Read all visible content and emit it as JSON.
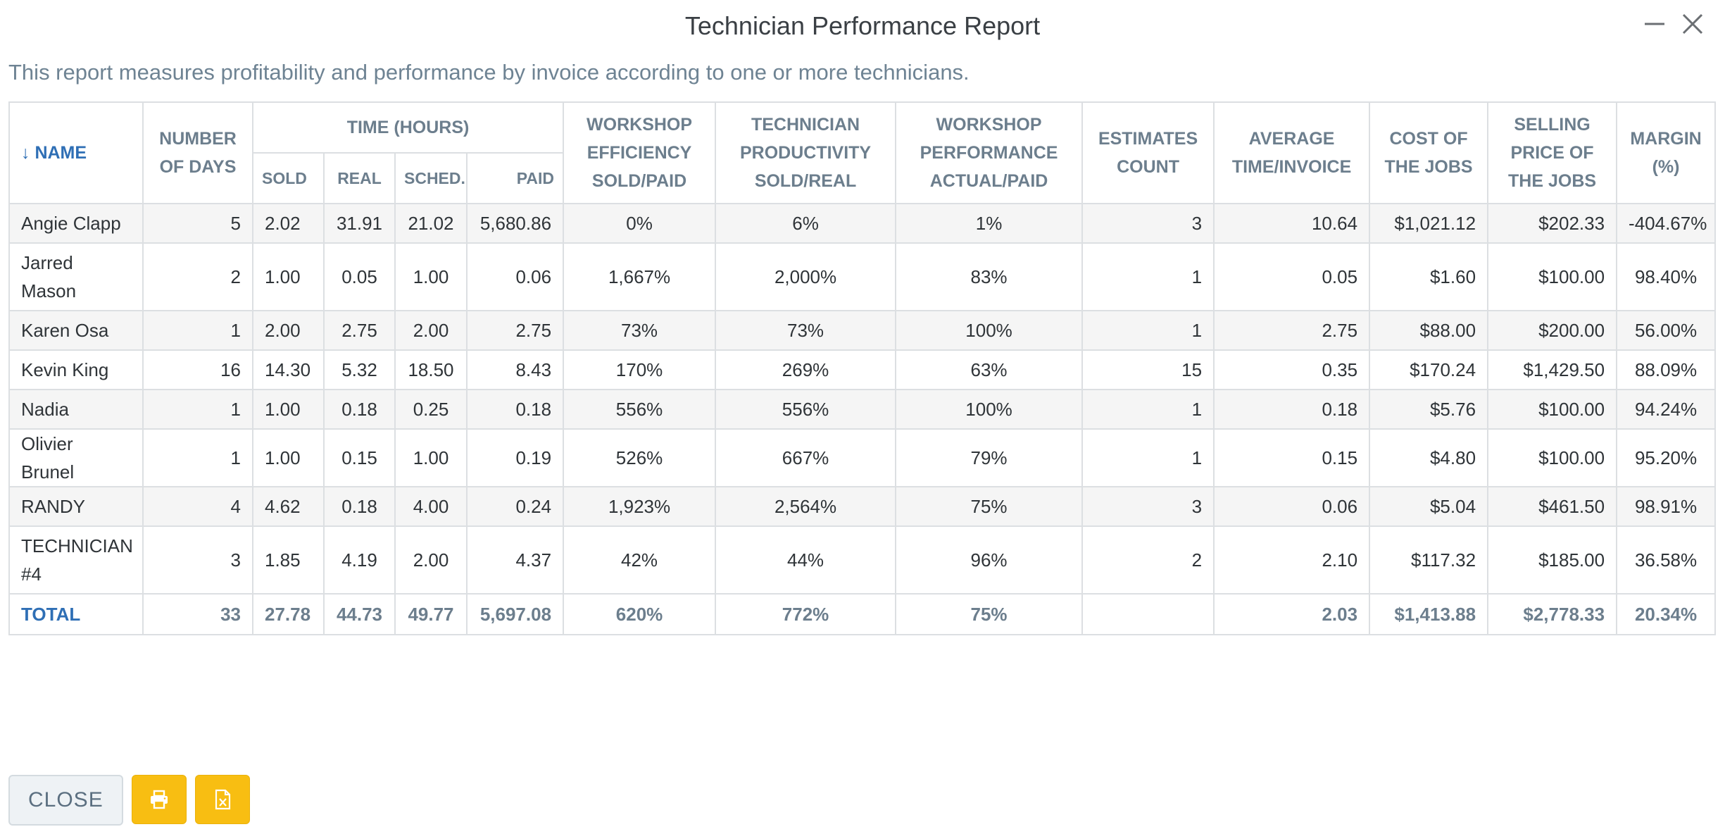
{
  "window": {
    "title": "Technician Performance Report",
    "minimize_icon": "minimize-icon",
    "close_icon": "close-icon"
  },
  "description": "This report measures profitability and performance by invoice according to one or more technicians.",
  "table": {
    "headers": {
      "name": "↓ NAME",
      "days": "NUMBER OF DAYS",
      "time_group": "TIME (HOURS)",
      "sold": "SOLD",
      "real": "REAL",
      "sched": "SCHED.",
      "paid": "PAID",
      "efficiency": "WORKSHOP EFFICIENCY SOLD/PAID",
      "productivity": "TECHNICIAN PRODUCTIVITY SOLD/REAL",
      "performance": "WORKSHOP PERFORMANCE ACTUAL/PAID",
      "estimates": "ESTIMATES COUNT",
      "avg_time": "AVERAGE TIME/INVOICE",
      "cost": "COST OF THE JOBS",
      "selling": "SELLING PRICE OF THE JOBS",
      "margin": "MARGIN (%)"
    },
    "rows": [
      {
        "name": "Angie Clapp",
        "days": "5",
        "sold": "2.02",
        "real": "31.91",
        "sched": "21.02",
        "paid": "5,680.86",
        "efficiency": "0%",
        "productivity": "6%",
        "performance": "1%",
        "estimates": "3",
        "avg_time": "10.64",
        "cost": "$1,021.12",
        "selling": "$202.33",
        "margin": "-404.67%"
      },
      {
        "name": "Jarred Mason",
        "days": "2",
        "sold": "1.00",
        "real": "0.05",
        "sched": "1.00",
        "paid": "0.06",
        "efficiency": "1,667%",
        "productivity": "2,000%",
        "performance": "83%",
        "estimates": "1",
        "avg_time": "0.05",
        "cost": "$1.60",
        "selling": "$100.00",
        "margin": "98.40%"
      },
      {
        "name": "Karen Osa",
        "days": "1",
        "sold": "2.00",
        "real": "2.75",
        "sched": "2.00",
        "paid": "2.75",
        "efficiency": "73%",
        "productivity": "73%",
        "performance": "100%",
        "estimates": "1",
        "avg_time": "2.75",
        "cost": "$88.00",
        "selling": "$200.00",
        "margin": "56.00%"
      },
      {
        "name": "Kevin King",
        "days": "16",
        "sold": "14.30",
        "real": "5.32",
        "sched": "18.50",
        "paid": "8.43",
        "efficiency": "170%",
        "productivity": "269%",
        "performance": "63%",
        "estimates": "15",
        "avg_time": "0.35",
        "cost": "$170.24",
        "selling": "$1,429.50",
        "margin": "88.09%"
      },
      {
        "name": "Nadia",
        "days": "1",
        "sold": "1.00",
        "real": "0.18",
        "sched": "0.25",
        "paid": "0.18",
        "efficiency": "556%",
        "productivity": "556%",
        "performance": "100%",
        "estimates": "1",
        "avg_time": "0.18",
        "cost": "$5.76",
        "selling": "$100.00",
        "margin": "94.24%"
      },
      {
        "name": "Olivier Brunel",
        "days": "1",
        "sold": "1.00",
        "real": "0.15",
        "sched": "1.00",
        "paid": "0.19",
        "efficiency": "526%",
        "productivity": "667%",
        "performance": "79%",
        "estimates": "1",
        "avg_time": "0.15",
        "cost": "$4.80",
        "selling": "$100.00",
        "margin": "95.20%"
      },
      {
        "name": "RANDY",
        "days": "4",
        "sold": "4.62",
        "real": "0.18",
        "sched": "4.00",
        "paid": "0.24",
        "efficiency": "1,923%",
        "productivity": "2,564%",
        "performance": "75%",
        "estimates": "3",
        "avg_time": "0.06",
        "cost": "$5.04",
        "selling": "$461.50",
        "margin": "98.91%"
      },
      {
        "name": "TECHNICIAN #4",
        "days": "3",
        "sold": "1.85",
        "real": "4.19",
        "sched": "2.00",
        "paid": "4.37",
        "efficiency": "42%",
        "productivity": "44%",
        "performance": "96%",
        "estimates": "2",
        "avg_time": "2.10",
        "cost": "$117.32",
        "selling": "$185.00",
        "margin": "36.58%"
      }
    ],
    "total": {
      "name": "TOTAL",
      "days": "33",
      "sold": "27.78",
      "real": "44.73",
      "sched": "49.77",
      "paid": "5,697.08",
      "efficiency": "620%",
      "productivity": "772%",
      "performance": "75%",
      "estimates": "",
      "avg_time": "2.03",
      "cost": "$1,413.88",
      "selling": "$2,778.33",
      "margin": "20.34%"
    }
  },
  "footer": {
    "close_label": "CLOSE",
    "print_icon": "print-icon",
    "excel_icon": "excel-export-icon"
  },
  "colors": {
    "accent_blue": "#2f6fb5",
    "header_gray": "#6c7e8d",
    "button_yellow": "#f8be12"
  }
}
